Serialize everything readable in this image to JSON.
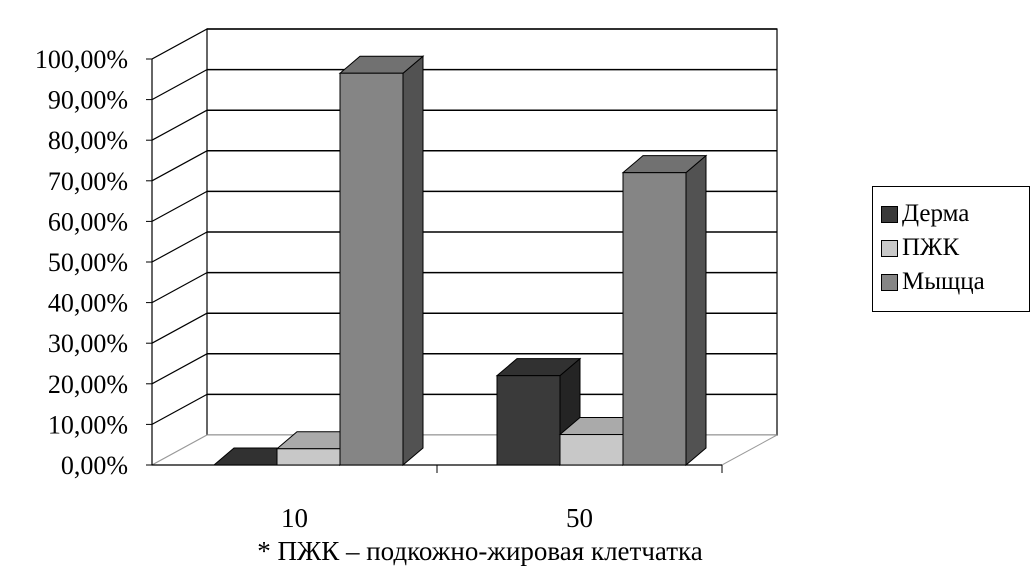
{
  "chart_data": {
    "type": "bar",
    "categories": [
      "10",
      "50"
    ],
    "series": [
      {
        "name": "Дерма",
        "values": [
          0.0,
          22.0
        ],
        "color": "#3a3a3a"
      },
      {
        "name": "ПЖК",
        "values": [
          4.0,
          7.5
        ],
        "color": "#c8c8c8"
      },
      {
        "name": "Мыщца",
        "values": [
          96.5,
          72.0
        ],
        "color": "#858585"
      }
    ],
    "yticks": [
      "0,00%",
      "10,00%",
      "20,00%",
      "30,00%",
      "40,00%",
      "50,00%",
      "60,00%",
      "70,00%",
      "80,00%",
      "90,00%",
      "100,00%"
    ],
    "ylim": [
      0,
      100
    ],
    "grid": true,
    "legend": "right",
    "three_d": true
  },
  "legend": {
    "items": [
      {
        "label": "Дерма",
        "color": "#3a3a3a"
      },
      {
        "label": "ПЖК",
        "color": "#c8c8c8"
      },
      {
        "label": "Мыщца",
        "color": "#858585"
      }
    ]
  },
  "footnote": "* ПЖК – подкожно-жировая клетчатка"
}
